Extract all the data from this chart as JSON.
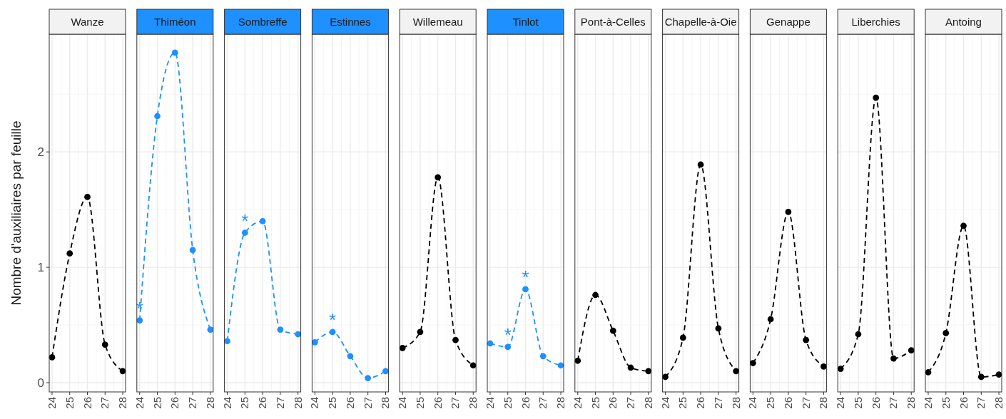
{
  "chart_data": [
    {
      "type": "line",
      "title": "Wanze",
      "ylabel": "Nombre d'auxiliaires par feuille",
      "x": [
        24,
        25,
        26,
        27,
        28
      ],
      "series": [
        {
          "color": "#000000",
          "values": [
            0.22,
            1.12,
            1.61,
            0.33,
            0.1
          ]
        }
      ],
      "xlim": [
        23.84,
        28.16
      ],
      "ylim": [
        -0.08,
        3.02
      ],
      "xticks": [
        24,
        25,
        26,
        27,
        28
      ],
      "yticks": [
        0,
        1,
        2
      ],
      "grid": true,
      "marker": "circle",
      "line_style": "dashed"
    },
    {
      "type": "line",
      "title": "Thiméon",
      "x": [
        24,
        25,
        26,
        27,
        28
      ],
      "series": [
        {
          "color": "#1e90ff",
          "values": [
            0.54,
            2.31,
            2.86,
            1.15,
            0.46
          ],
          "value_labels": [
            "*",
            null,
            null,
            null,
            null
          ]
        }
      ],
      "xlim": [
        23.84,
        28.16
      ],
      "ylim": [
        -0.08,
        3.02
      ],
      "xticks": [
        24,
        25,
        26,
        27,
        28
      ],
      "yticks": [
        0,
        1,
        2
      ],
      "tick_labels": "x",
      "grid": true,
      "marker": "circle",
      "line_style": "dashed"
    },
    {
      "type": "line",
      "title": "Sombreffe",
      "x": [
        24,
        25,
        26,
        27,
        28
      ],
      "series": [
        {
          "color": "#1e90ff",
          "values": [
            0.36,
            1.3,
            1.4,
            0.46,
            0.42
          ],
          "value_labels": [
            null,
            "*",
            null,
            null,
            null
          ]
        }
      ],
      "xlim": [
        23.84,
        28.16
      ],
      "ylim": [
        -0.08,
        3.02
      ],
      "xticks": [
        24,
        25,
        26,
        27,
        28
      ],
      "yticks": [
        0,
        1,
        2
      ],
      "tick_labels": "x",
      "grid": true,
      "marker": "circle",
      "line_style": "dashed"
    },
    {
      "type": "line",
      "title": "Estinnes",
      "x": [
        24,
        25,
        26,
        27,
        28
      ],
      "series": [
        {
          "color": "#1e90ff",
          "values": [
            0.35,
            0.44,
            0.23,
            0.04,
            0.1
          ],
          "value_labels": [
            null,
            "*",
            null,
            null,
            null
          ]
        }
      ],
      "xlim": [
        23.84,
        28.16
      ],
      "ylim": [
        -0.08,
        3.02
      ],
      "xticks": [
        24,
        25,
        26,
        27,
        28
      ],
      "yticks": [
        0,
        1,
        2
      ],
      "tick_labels": "x",
      "grid": true,
      "marker": "circle",
      "line_style": "dashed"
    },
    {
      "type": "line",
      "title": "Willemeau",
      "x": [
        24,
        25,
        26,
        27,
        28
      ],
      "series": [
        {
          "color": "#000000",
          "values": [
            0.3,
            0.44,
            1.78,
            0.37,
            0.15
          ]
        }
      ],
      "xlim": [
        23.84,
        28.16
      ],
      "ylim": [
        -0.08,
        3.02
      ],
      "xticks": [
        24,
        25,
        26,
        27,
        28
      ],
      "yticks": [
        0,
        1,
        2
      ],
      "tick_labels": "x",
      "grid": true,
      "marker": "circle",
      "line_style": "dashed"
    },
    {
      "type": "line",
      "title": "Tinlot",
      "x": [
        24,
        25,
        26,
        27,
        28
      ],
      "series": [
        {
          "color": "#1e90ff",
          "values": [
            0.34,
            0.31,
            0.81,
            0.23,
            0.15
          ],
          "value_labels": [
            null,
            "*",
            "*",
            null,
            null
          ]
        }
      ],
      "xlim": [
        23.84,
        28.16
      ],
      "ylim": [
        -0.08,
        3.02
      ],
      "xticks": [
        24,
        25,
        26,
        27,
        28
      ],
      "yticks": [
        0,
        1,
        2
      ],
      "tick_labels": "x",
      "grid": true,
      "marker": "circle",
      "line_style": "dashed"
    },
    {
      "type": "line",
      "title": "Pont-à-Celles",
      "x": [
        24,
        25,
        26,
        27,
        28
      ],
      "series": [
        {
          "color": "#000000",
          "values": [
            0.19,
            0.76,
            0.45,
            0.13,
            0.1
          ]
        }
      ],
      "xlim": [
        23.84,
        28.16
      ],
      "ylim": [
        -0.08,
        3.02
      ],
      "xticks": [
        24,
        25,
        26,
        27,
        28
      ],
      "yticks": [
        0,
        1,
        2
      ],
      "tick_labels": "x",
      "grid": true,
      "marker": "circle",
      "line_style": "dashed"
    },
    {
      "type": "line",
      "title": "Chapelle-à-Oie",
      "x": [
        24,
        25,
        26,
        27,
        28
      ],
      "series": [
        {
          "color": "#000000",
          "values": [
            0.05,
            0.39,
            1.89,
            0.47,
            0.1
          ]
        }
      ],
      "xlim": [
        23.84,
        28.16
      ],
      "ylim": [
        -0.08,
        3.02
      ],
      "xticks": [
        24,
        25,
        26,
        27,
        28
      ],
      "yticks": [
        0,
        1,
        2
      ],
      "tick_labels": "x",
      "grid": true,
      "marker": "circle",
      "line_style": "dashed"
    },
    {
      "type": "line",
      "title": "Genappe",
      "x": [
        24,
        25,
        26,
        27,
        28
      ],
      "series": [
        {
          "color": "#000000",
          "values": [
            0.17,
            0.55,
            1.48,
            0.37,
            0.14
          ]
        }
      ],
      "xlim": [
        23.84,
        28.16
      ],
      "ylim": [
        -0.08,
        3.02
      ],
      "xticks": [
        24,
        25,
        26,
        27,
        28
      ],
      "yticks": [
        0,
        1,
        2
      ],
      "tick_labels": "x",
      "grid": true,
      "marker": "circle",
      "line_style": "dashed"
    },
    {
      "type": "line",
      "title": "Liberchies",
      "x": [
        24,
        25,
        26,
        27,
        28
      ],
      "series": [
        {
          "color": "#000000",
          "values": [
            0.12,
            0.42,
            2.47,
            0.21,
            0.28
          ]
        }
      ],
      "xlim": [
        23.84,
        28.16
      ],
      "ylim": [
        -0.08,
        3.02
      ],
      "xticks": [
        24,
        25,
        26,
        27,
        28
      ],
      "yticks": [
        0,
        1,
        2
      ],
      "tick_labels": "x",
      "grid": true,
      "marker": "circle",
      "line_style": "dashed"
    },
    {
      "type": "line",
      "title": "Antoing",
      "x": [
        24,
        25,
        26,
        27,
        28
      ],
      "series": [
        {
          "color": "#000000",
          "values": [
            0.09,
            0.43,
            1.36,
            0.05,
            0.07
          ]
        }
      ],
      "xlim": [
        23.84,
        28.16
      ],
      "ylim": [
        -0.08,
        3.02
      ],
      "xticks": [
        24,
        25,
        26,
        27,
        28
      ],
      "yticks": [
        0,
        1,
        2
      ],
      "tick_labels": "x",
      "grid": true,
      "marker": "circle",
      "line_style": "dashed"
    }
  ]
}
